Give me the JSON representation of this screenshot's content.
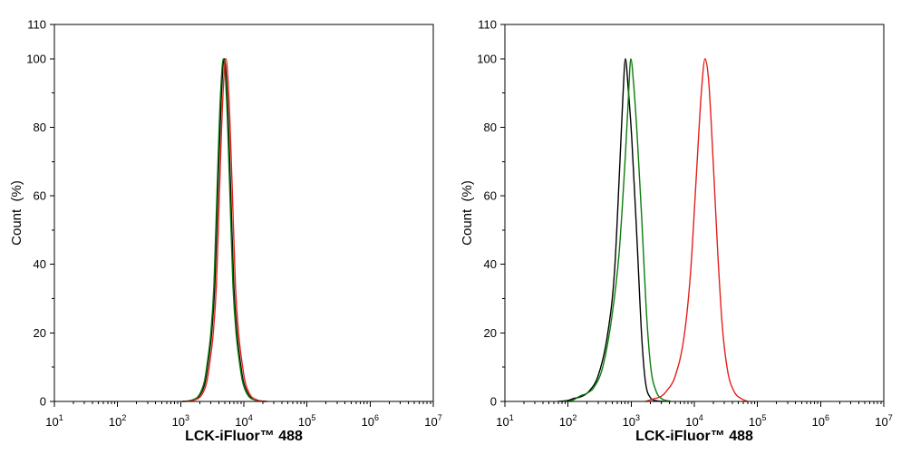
{
  "chart_data": [
    {
      "type": "line",
      "xscale": "log",
      "xlim": [
        10,
        10000000
      ],
      "ylim": [
        0,
        110
      ],
      "grid": false,
      "xlabel": "LCK-iFluor™ 488",
      "ylabel": "Count  (%)",
      "yticks": [
        0,
        20,
        40,
        60,
        80,
        100,
        110
      ],
      "xticks": [
        {
          "base": "10",
          "exp": "1"
        },
        {
          "base": "10",
          "exp": "2"
        },
        {
          "base": "10",
          "exp": "3"
        },
        {
          "base": "10",
          "exp": "4"
        },
        {
          "base": "10",
          "exp": "5"
        },
        {
          "base": "10",
          "exp": "6"
        },
        {
          "base": "10",
          "exp": "7"
        }
      ],
      "series": [
        {
          "color": "#000000",
          "points": [
            [
              1100,
              0
            ],
            [
              1550,
              0.4
            ],
            [
              2040,
              2
            ],
            [
              2460,
              6
            ],
            [
              2750,
              12
            ],
            [
              3090,
              20
            ],
            [
              3470,
              34
            ],
            [
              3890,
              62
            ],
            [
              4370,
              88
            ],
            [
              4900,
              100
            ],
            [
              5500,
              88
            ],
            [
              6170,
              62
            ],
            [
              6920,
              34
            ],
            [
              7770,
              20
            ],
            [
              8710,
              12
            ],
            [
              9780,
              6
            ],
            [
              11800,
              2
            ],
            [
              15500,
              0.4
            ],
            [
              21900,
              0
            ]
          ]
        },
        {
          "color": "#0c7c0c",
          "points": [
            [
              1060,
              0
            ],
            [
              1500,
              0.4
            ],
            [
              1980,
              2
            ],
            [
              2380,
              6
            ],
            [
              2670,
              12
            ],
            [
              3000,
              20
            ],
            [
              3360,
              34
            ],
            [
              3770,
              62
            ],
            [
              4230,
              88
            ],
            [
              4750,
              100
            ],
            [
              5330,
              88
            ],
            [
              5980,
              62
            ],
            [
              6710,
              34
            ],
            [
              7530,
              20
            ],
            [
              8450,
              12
            ],
            [
              9480,
              6
            ],
            [
              11400,
              2
            ],
            [
              15000,
              0.4
            ],
            [
              21200,
              0
            ]
          ]
        },
        {
          "color": "#e3201b",
          "points": [
            [
              1160,
              0
            ],
            [
              1640,
              0.4
            ],
            [
              2170,
              2
            ],
            [
              2610,
              6
            ],
            [
              2920,
              12
            ],
            [
              3280,
              20
            ],
            [
              3680,
              34
            ],
            [
              4130,
              62
            ],
            [
              4630,
              88
            ],
            [
              5200,
              100
            ],
            [
              5830,
              88
            ],
            [
              6550,
              62
            ],
            [
              7350,
              34
            ],
            [
              8240,
              20
            ],
            [
              9250,
              12
            ],
            [
              10400,
              6
            ],
            [
              12500,
              2
            ],
            [
              16400,
              0.4
            ],
            [
              23200,
              0
            ]
          ]
        }
      ]
    },
    {
      "type": "line",
      "xscale": "log",
      "xlim": [
        10,
        10000000
      ],
      "ylim": [
        0,
        110
      ],
      "grid": false,
      "xlabel": "LCK-iFluor™ 488",
      "ylabel": "Count  (%)",
      "yticks": [
        0,
        20,
        40,
        60,
        80,
        100,
        110
      ],
      "xticks": [
        {
          "base": "10",
          "exp": "1"
        },
        {
          "base": "10",
          "exp": "2"
        },
        {
          "base": "10",
          "exp": "3"
        },
        {
          "base": "10",
          "exp": "4"
        },
        {
          "base": "10",
          "exp": "5"
        },
        {
          "base": "10",
          "exp": "6"
        },
        {
          "base": "10",
          "exp": "7"
        }
      ],
      "series": [
        {
          "color": "#000000",
          "points": [
            [
              70,
              0
            ],
            [
              100,
              0.3
            ],
            [
              125,
              0.9
            ],
            [
              150,
              1.2
            ],
            [
              180,
              1.8
            ],
            [
              216,
              3
            ],
            [
              300,
              7.5
            ],
            [
              418,
              19
            ],
            [
              545,
              38
            ],
            [
              664,
              70
            ],
            [
              740,
              89
            ],
            [
              810,
              100
            ],
            [
              900,
              91
            ],
            [
              1020,
              77
            ],
            [
              1245,
              46
            ],
            [
              1467,
              19
            ],
            [
              1674,
              6
            ],
            [
              2040,
              1
            ],
            [
              2500,
              0.2
            ],
            [
              3200,
              0
            ]
          ]
        },
        {
          "color": "#0c7c0c",
          "points": [
            [
              80,
              0
            ],
            [
              120,
              0.4
            ],
            [
              155,
              1.6
            ],
            [
              200,
              2.4
            ],
            [
              255,
              4
            ],
            [
              354,
              10
            ],
            [
              493,
              24.6
            ],
            [
              642,
              43
            ],
            [
              810,
              72
            ],
            [
              900,
              88
            ],
            [
              986,
              100
            ],
            [
              1100,
              92
            ],
            [
              1245,
              77.5
            ],
            [
              1467,
              53.7
            ],
            [
              1730,
              27
            ],
            [
              2040,
              10
            ],
            [
              2490,
              2.9
            ],
            [
              3030,
              0.8
            ],
            [
              4230,
              0
            ]
          ]
        },
        {
          "color": "#e3201b",
          "points": [
            [
              1670,
              0
            ],
            [
              2330,
              0.8
            ],
            [
              3000,
              1.5
            ],
            [
              3580,
              2.9
            ],
            [
              4980,
              7.4
            ],
            [
              6930,
              19.3
            ],
            [
              8730,
              37.8
            ],
            [
              10640,
              64.3
            ],
            [
              12980,
              90.7
            ],
            [
              14800,
              100
            ],
            [
              16900,
              93.3
            ],
            [
              19950,
              69.5
            ],
            [
              23530,
              43.1
            ],
            [
              27750,
              21.9
            ],
            [
              33830,
              8.7
            ],
            [
              42620,
              2.9
            ],
            [
              55560,
              0.8
            ],
            [
              70000,
              0
            ]
          ]
        }
      ]
    }
  ]
}
